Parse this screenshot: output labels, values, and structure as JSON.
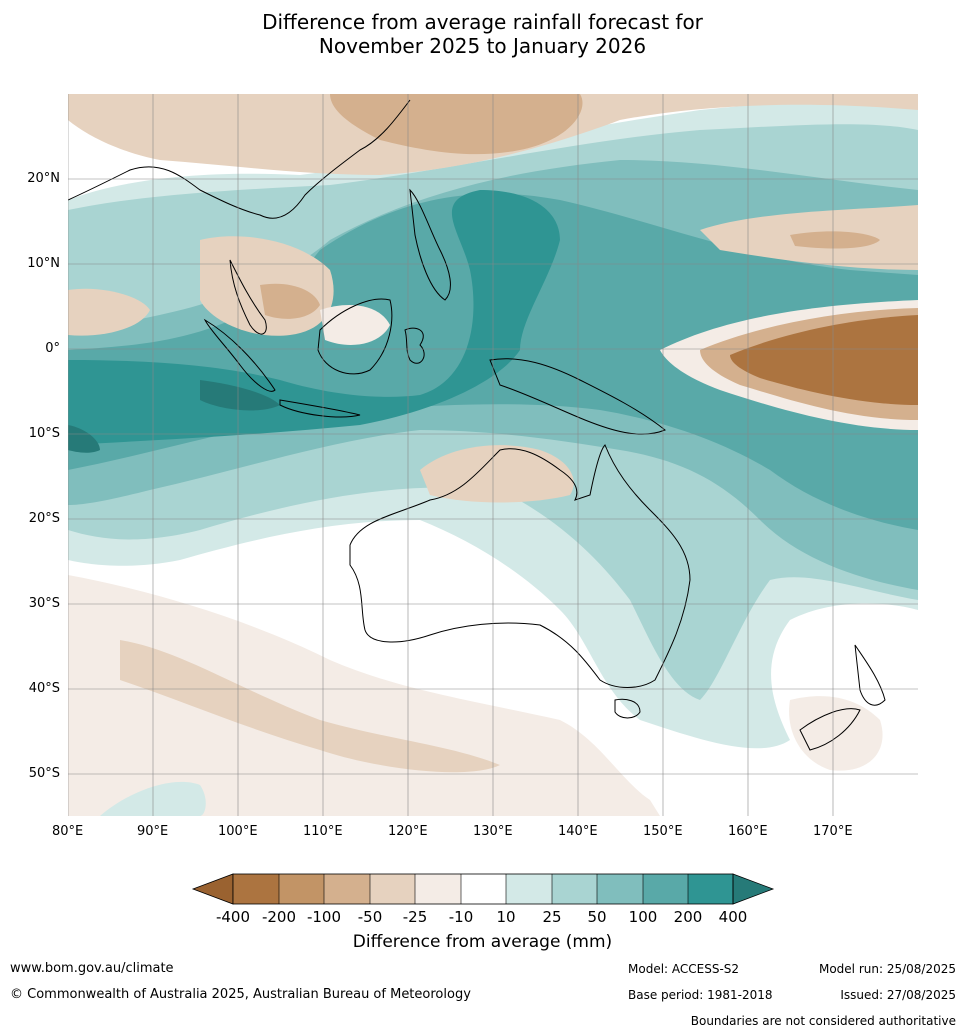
{
  "title": {
    "line1": "Difference from average rainfall forecast for",
    "line2": "November 2025 to January 2026"
  },
  "map": {
    "lon_ticks": [
      "80°E",
      "90°E",
      "100°E",
      "110°E",
      "120°E",
      "130°E",
      "140°E",
      "150°E",
      "160°E",
      "170°E"
    ],
    "lat_ticks": [
      "20°N",
      "10°N",
      "0°",
      "10°S",
      "20°S",
      "30°S",
      "40°S",
      "50°S"
    ],
    "gridlines": true
  },
  "colorbar": {
    "title": "Difference from average (mm)",
    "tick_labels": [
      "-400",
      "-200",
      "-100",
      "-50",
      "-25",
      "-10",
      "10",
      "25",
      "50",
      "100",
      "200",
      "400"
    ],
    "colors": [
      "#9a6230",
      "#ac7440",
      "#c29466",
      "#d4b08e",
      "#e6d2bf",
      "#f4ece6",
      "#ffffff",
      "#d3e9e7",
      "#a9d4d2",
      "#80bebd",
      "#59a9a8",
      "#2f9593",
      "#267a78"
    ]
  },
  "footer": {
    "url": "www.bom.gov.au/climate",
    "copyright": "© Commonwealth of Australia 2025, Australian Bureau of Meteorology",
    "model": "Model: ACCESS-S2",
    "base_period": "Base period: 1981-2018",
    "model_run": "Model run: 25/08/2025",
    "issued": "Issued: 27/08/2025",
    "disclaimer": "Boundaries are not considered authoritative"
  }
}
